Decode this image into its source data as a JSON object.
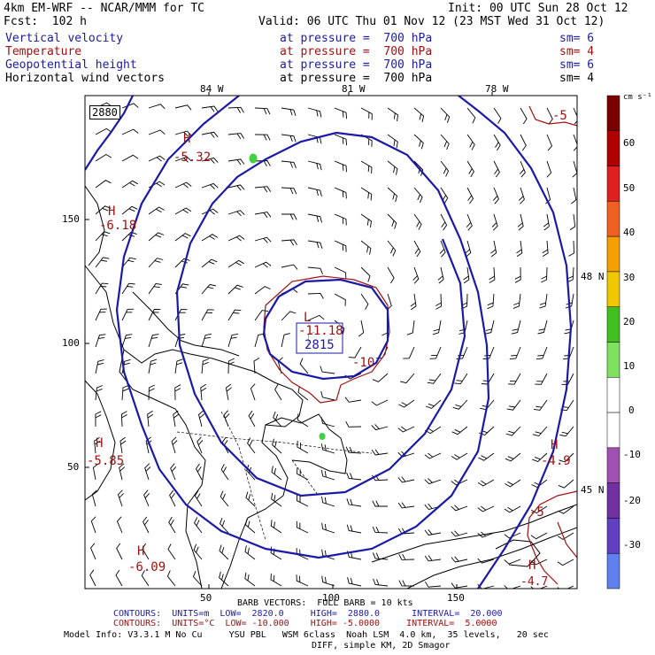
{
  "header": {
    "model_line": "4km EM-WRF -- NCAR/MMM for TC",
    "init_line": "Init: 00 UTC Sun 28 Oct 12",
    "fcst_line": "Fcst:  102 h",
    "valid_line": "Valid: 06 UTC Thu 01 Nov 12 (23 MST Wed 31 Oct 12)"
  },
  "fields": [
    {
      "name": "Vertical velocity",
      "level": "at pressure =  700 hPa",
      "sm": "sm= 6",
      "color": "#1a1aa6"
    },
    {
      "name": "Temperature",
      "level": "at pressure =  700 hPa",
      "sm": "sm= 4",
      "color": "#a01010"
    },
    {
      "name": "Geopotential height",
      "level": "at pressure =  700 hPa",
      "sm": "sm= 6",
      "color": "#1a1aa6"
    },
    {
      "name": "Horizontal wind vectors",
      "level": "at pressure =  700 hPa",
      "sm": "sm= 4",
      "color": "#000000"
    }
  ],
  "map": {
    "lon_labels": [
      "84 W",
      "81 W",
      "78 W"
    ],
    "lat_labels": [
      "48 N",
      "45 N"
    ],
    "x_ticks": [
      "50",
      "100",
      "150"
    ],
    "y_ticks": [
      "150",
      "100",
      "50"
    ],
    "corner_label": "2880",
    "low_center": {
      "letter": "L",
      "temp": "-11.18",
      "height": "2815"
    },
    "annotations": [
      {
        "letter": "H",
        "value": "-5.32"
      },
      {
        "letter": "H",
        "value": "-6.18"
      },
      {
        "letter": "H",
        "value": "-5.85"
      },
      {
        "letter": "H",
        "value": "-6.09"
      },
      {
        "letter": "H",
        "value": "-4.9"
      },
      {
        "letter": "H",
        "value": "-4.7"
      }
    ],
    "contour_labels": [
      "-10",
      "-5",
      "-5"
    ],
    "colors": {
      "height": "#1a1aa6",
      "temperature": "#a01010",
      "wind": "#000000",
      "coast": "#000000"
    }
  },
  "colorbar": {
    "unit": "cm s⁻¹",
    "labels": [
      "60",
      "50",
      "40",
      "30",
      "20",
      "10",
      "0",
      "-10",
      "-20",
      "-30"
    ],
    "colors": [
      "#7a0000",
      "#b00000",
      "#e02020",
      "#f06020",
      "#f5a000",
      "#f0c800",
      "#40c020",
      "#80e060",
      "#ffffff",
      "#ffffff",
      "#a050b0",
      "#7030a0",
      "#6040c0",
      "#6080f0"
    ]
  },
  "footer": {
    "barb_line": "BARB VECTORS:  FULL BARB = 10 kts",
    "contours_height": "CONTOURS:  UNITS=m  LOW=  2820.0     HIGH=  2880.0      INTERVAL=  20.000",
    "contours_temp": "CONTOURS:  UNITS=°C  LOW= -10.000    HIGH= -5.0000     INTERVAL=  5.0000",
    "model_info": "Model Info: V3.3.1 M No Cu     YSU PBL   WSM 6class  Noah LSM  4.0 km,  35 levels,   20 sec",
    "diff_line": "DIFF, simple KM, 2D Smagor"
  }
}
